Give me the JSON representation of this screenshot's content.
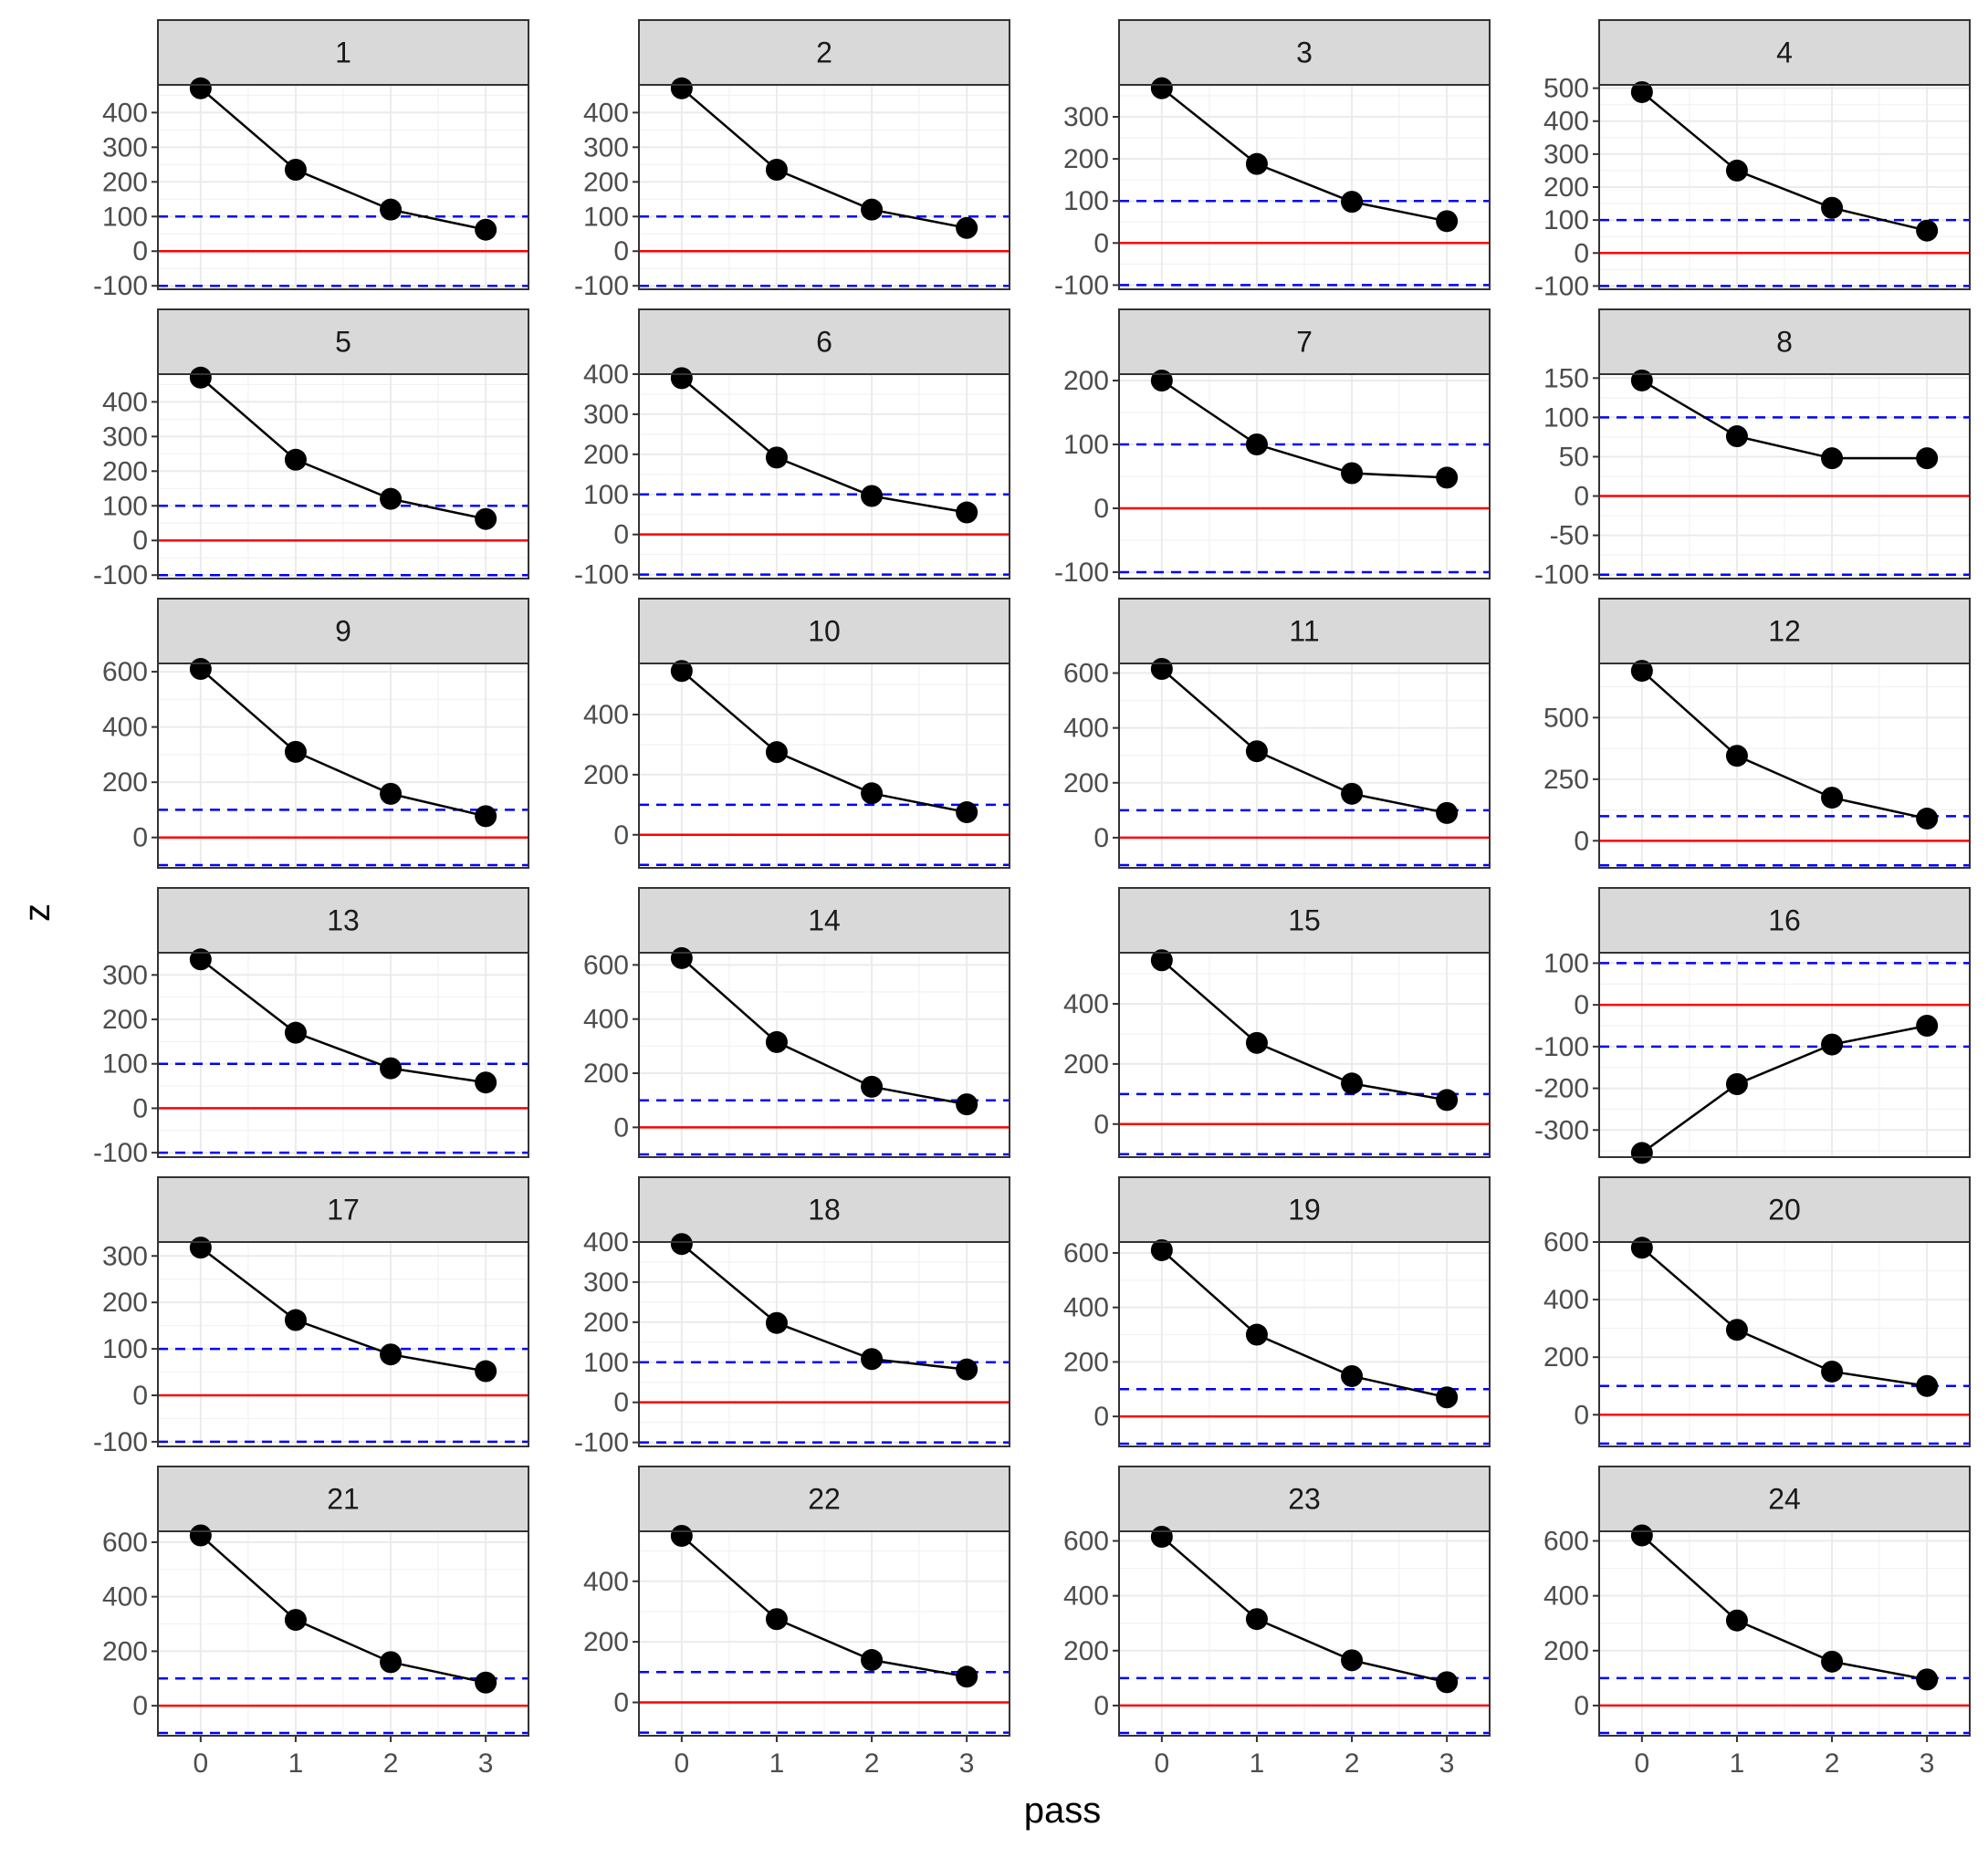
{
  "chart_data": {
    "type": "line",
    "xlabel": "pass",
    "ylabel": "z",
    "x": [
      0,
      1,
      2,
      3
    ],
    "grid": true,
    "legend": "none",
    "colors": {
      "series": "#000000",
      "zero_line": "#ff0000",
      "threshold_lines": "#0000ff",
      "strip_fill": "#d9d9d9",
      "panel_border": "#333333",
      "grid_major": "#ebebeb",
      "grid_minor": "#f2f2f2"
    },
    "reference_lines": {
      "solid": [
        0
      ],
      "dashed": [
        -100,
        100
      ]
    },
    "panels": [
      {
        "label": "1",
        "values": [
          470,
          235,
          120,
          62
        ],
        "ylim": [
          -110,
          480
        ],
        "yticks": [
          "400",
          "300",
          "200",
          "100",
          "0",
          "-100"
        ]
      },
      {
        "label": "2",
        "values": [
          470,
          235,
          120,
          67
        ],
        "ylim": [
          -110,
          480
        ],
        "yticks": [
          "400",
          "300",
          "200",
          "100",
          "0",
          "-100"
        ]
      },
      {
        "label": "3",
        "values": [
          368,
          188,
          98,
          52
        ],
        "ylim": [
          -110,
          376
        ],
        "yticks": [
          "300",
          "200",
          "100",
          "0",
          "-100"
        ]
      },
      {
        "label": "4",
        "values": [
          488,
          250,
          137,
          68
        ],
        "ylim": [
          -110,
          510
        ],
        "yticks": [
          "500",
          "400",
          "300",
          "200",
          "100",
          "0",
          "-100"
        ]
      },
      {
        "label": "5",
        "values": [
          470,
          233,
          120,
          62
        ],
        "ylim": [
          -110,
          480
        ],
        "yticks": [
          "400",
          "300",
          "200",
          "100",
          "0",
          "-100"
        ]
      },
      {
        "label": "6",
        "values": [
          390,
          192,
          96,
          55
        ],
        "ylim": [
          -110,
          400
        ],
        "yticks": [
          "400",
          "300",
          "200",
          "100",
          "0",
          "-100"
        ]
      },
      {
        "label": "7",
        "values": [
          200,
          100,
          55,
          48
        ],
        "ylim": [
          -110,
          210
        ],
        "yticks": [
          "200",
          "100",
          "0",
          "-100"
        ]
      },
      {
        "label": "8",
        "values": [
          147,
          76,
          48,
          48
        ],
        "ylim": [
          -105,
          155
        ],
        "yticks": [
          "150",
          "100",
          "50",
          "0",
          "-50",
          "-100"
        ]
      },
      {
        "label": "9",
        "values": [
          610,
          310,
          158,
          77
        ],
        "ylim": [
          -110,
          630
        ],
        "yticks": [
          "600",
          "400",
          "200",
          "0"
        ]
      },
      {
        "label": "10",
        "values": [
          545,
          275,
          138,
          75
        ],
        "ylim": [
          -110,
          570
        ],
        "yticks": [
          "400",
          "200",
          "0"
        ]
      },
      {
        "label": "11",
        "values": [
          615,
          315,
          160,
          90
        ],
        "ylim": [
          -110,
          635
        ],
        "yticks": [
          "600",
          "400",
          "200",
          "0"
        ]
      },
      {
        "label": "12",
        "values": [
          690,
          345,
          175,
          90
        ],
        "ylim": [
          -110,
          720
        ],
        "yticks": [
          "500",
          "250",
          "0"
        ]
      },
      {
        "label": "13",
        "values": [
          335,
          170,
          90,
          58
        ],
        "ylim": [
          -110,
          350
        ],
        "yticks": [
          "300",
          "200",
          "100",
          "0",
          "-100"
        ]
      },
      {
        "label": "14",
        "values": [
          625,
          315,
          150,
          85
        ],
        "ylim": [
          -110,
          645
        ],
        "yticks": [
          "600",
          "400",
          "200",
          "0"
        ]
      },
      {
        "label": "15",
        "values": [
          545,
          270,
          135,
          80
        ],
        "ylim": [
          -110,
          570
        ],
        "yticks": [
          "400",
          "200",
          "0"
        ]
      },
      {
        "label": "16",
        "values": [
          -355,
          -190,
          -95,
          -50
        ],
        "ylim": [
          -365,
          125
        ],
        "yticks": [
          "100",
          "0",
          "-100",
          "-200",
          "-300"
        ]
      },
      {
        "label": "17",
        "values": [
          318,
          162,
          88,
          52
        ],
        "ylim": [
          -110,
          330
        ],
        "yticks": [
          "300",
          "200",
          "100",
          "0",
          "-100"
        ]
      },
      {
        "label": "18",
        "values": [
          395,
          198,
          108,
          82
        ],
        "ylim": [
          -110,
          400
        ],
        "yticks": [
          "400",
          "300",
          "200",
          "100",
          "0",
          "-100"
        ]
      },
      {
        "label": "19",
        "values": [
          610,
          300,
          148,
          70
        ],
        "ylim": [
          -110,
          640
        ],
        "yticks": [
          "600",
          "400",
          "200",
          "0"
        ]
      },
      {
        "label": "20",
        "values": [
          580,
          295,
          150,
          100
        ],
        "ylim": [
          -110,
          600
        ],
        "yticks": [
          "600",
          "400",
          "200",
          "0"
        ]
      },
      {
        "label": "21",
        "values": [
          625,
          315,
          160,
          85
        ],
        "ylim": [
          -110,
          640
        ],
        "yticks": [
          "600",
          "400",
          "200",
          "0"
        ]
      },
      {
        "label": "22",
        "values": [
          550,
          275,
          140,
          85
        ],
        "ylim": [
          -110,
          565
        ],
        "yticks": [
          "400",
          "200",
          "0"
        ]
      },
      {
        "label": "23",
        "values": [
          615,
          315,
          165,
          85
        ],
        "ylim": [
          -110,
          635
        ],
        "yticks": [
          "600",
          "400",
          "200",
          "0"
        ]
      },
      {
        "label": "24",
        "values": [
          620,
          310,
          160,
          95
        ],
        "ylim": [
          -110,
          635
        ],
        "yticks": [
          "600",
          "400",
          "200",
          "0"
        ]
      }
    ]
  }
}
